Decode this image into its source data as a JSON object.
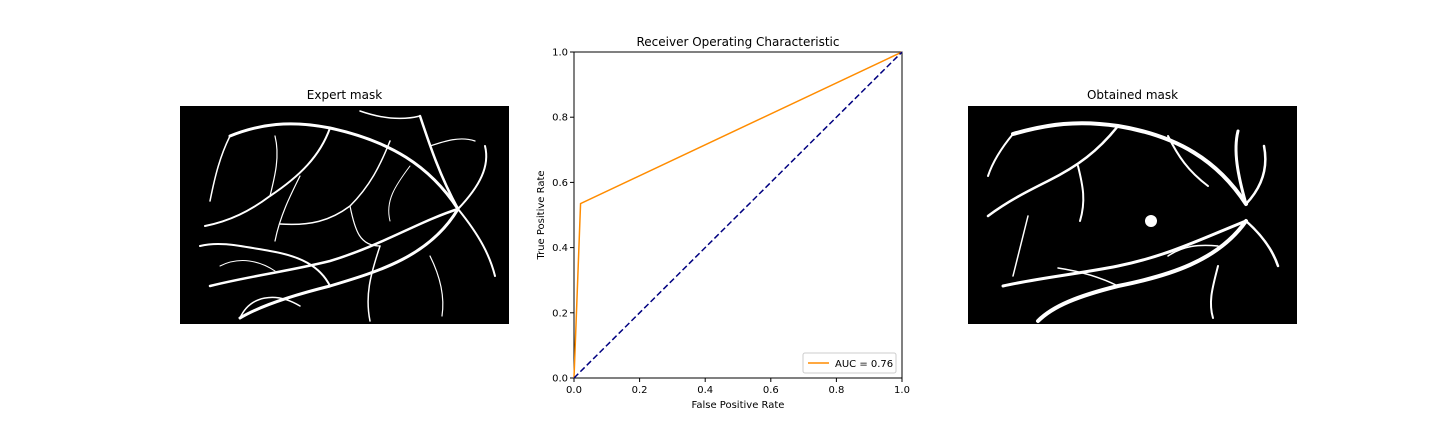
{
  "left_panel": {
    "title": "Expert mask"
  },
  "right_panel": {
    "title": "Obtained mask"
  },
  "chart_data": {
    "type": "line",
    "title": "Receiver Operating Characteristic",
    "xlabel": "False Positive Rate",
    "ylabel": "True Positive Rate",
    "xlim": [
      0,
      1
    ],
    "ylim": [
      0,
      1
    ],
    "xticks": [
      "0.0",
      "0.2",
      "0.4",
      "0.6",
      "0.8",
      "1.0"
    ],
    "yticks": [
      "0.0",
      "0.2",
      "0.4",
      "0.6",
      "0.8",
      "1.0"
    ],
    "grid": false,
    "legend_position": "lower-right",
    "series": [
      {
        "name": "AUC = 0.76",
        "color": "#ff8c00",
        "style": "solid",
        "x": [
          0,
          0.02,
          1
        ],
        "y": [
          0,
          0.535,
          1
        ]
      },
      {
        "color": "#000080",
        "style": "dashed",
        "x": [
          0,
          1
        ],
        "y": [
          0,
          1
        ]
      }
    ]
  }
}
